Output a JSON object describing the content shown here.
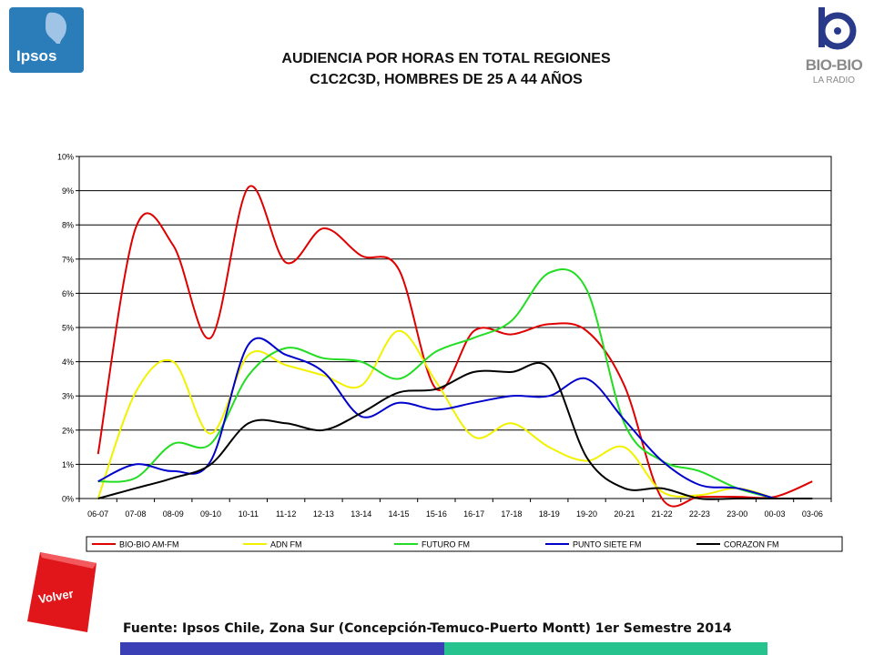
{
  "header": {
    "title_line1": "AUDIENCIA POR HORAS EN TOTAL REGIONES",
    "title_line2": "C1C2C3D, HOMBRES DE 25 A 44 AÑOS",
    "left_logo_text": "Ipsos",
    "right_logo_text": "BIO-BIO",
    "right_logo_subtext": "LA RADIO"
  },
  "nav": {
    "back_label": "Volver"
  },
  "footer": {
    "source": "Fuente: Ipsos Chile, Zona Sur (Concepción-Temuco-Puerto Montt) 1er Semestre 2014"
  },
  "colors": {
    "accent_left": "#3b3fb6",
    "accent_right": "#27c38f",
    "ipsos_blue": "#2b7dba",
    "volver_red": "#e0161b"
  },
  "chart_data": {
    "type": "line",
    "title": "",
    "xlabel": "",
    "ylabel": "",
    "ylim": [
      0,
      10
    ],
    "y_ticks": [
      "0%",
      "1%",
      "2%",
      "3%",
      "4%",
      "5%",
      "6%",
      "7%",
      "8%",
      "9%",
      "10%"
    ],
    "grid": true,
    "legend_position": "bottom",
    "categories": [
      "06-07",
      "07-08",
      "08-09",
      "09-10",
      "10-11",
      "11-12",
      "12-13",
      "13-14",
      "14-15",
      "15-16",
      "16-17",
      "17-18",
      "18-19",
      "19-20",
      "20-21",
      "21-22",
      "22-23",
      "23-00",
      "00-03",
      "03-06"
    ],
    "series": [
      {
        "name": "BIO-BIO AM-FM",
        "color": "#e00000",
        "values": [
          1.3,
          7.9,
          7.4,
          4.7,
          9.1,
          6.9,
          7.9,
          7.1,
          6.7,
          3.2,
          4.9,
          4.8,
          5.1,
          4.9,
          3.3,
          0.0,
          0.05,
          0.05,
          0.05,
          0.5
        ]
      },
      {
        "name": "ADN FM",
        "color": "#f2f200",
        "values": [
          0.0,
          3.1,
          4.0,
          1.9,
          4.2,
          3.9,
          3.6,
          3.3,
          4.9,
          3.4,
          1.8,
          2.2,
          1.5,
          1.1,
          1.5,
          0.2,
          0.1,
          0.3,
          0.0,
          null
        ]
      },
      {
        "name": "FUTURO FM",
        "color": "#22dd22",
        "values": [
          0.5,
          0.6,
          1.6,
          1.6,
          3.6,
          4.4,
          4.1,
          4.0,
          3.5,
          4.3,
          4.7,
          5.2,
          6.6,
          6.1,
          2.2,
          1.1,
          0.8,
          0.3,
          0.0,
          null
        ]
      },
      {
        "name": "PUNTO SIETE FM",
        "color": "#0000cc",
        "values": [
          0.5,
          1.0,
          0.8,
          1.1,
          4.5,
          4.2,
          3.7,
          2.4,
          2.8,
          2.6,
          2.8,
          3.0,
          3.0,
          3.5,
          2.3,
          1.1,
          0.4,
          0.3,
          0.0,
          null
        ]
      },
      {
        "name": "CORAZON FM",
        "color": "#000000",
        "values": [
          0.0,
          0.3,
          0.6,
          1.0,
          2.2,
          2.2,
          2.0,
          2.5,
          3.1,
          3.2,
          3.7,
          3.7,
          3.8,
          1.2,
          0.3,
          0.3,
          0.0,
          0.0,
          0.0,
          0.0
        ]
      }
    ]
  }
}
